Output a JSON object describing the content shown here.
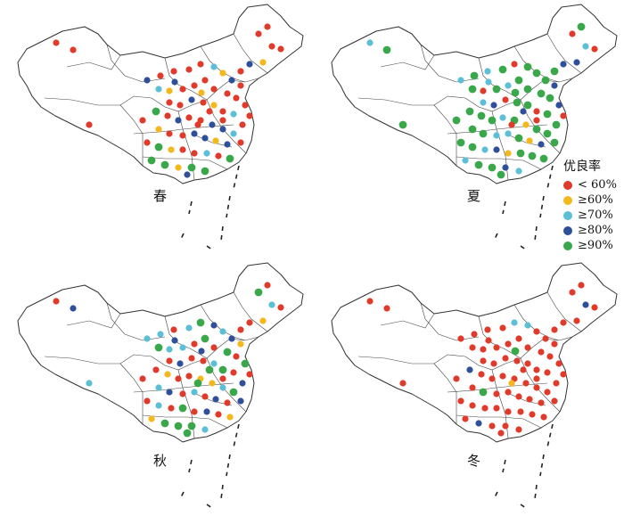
{
  "legend": {
    "title": "优良率",
    "items": [
      {
        "label": "< 60%",
        "color": "#e03a2b"
      },
      {
        "label": "≥60%",
        "color": "#f5b81c"
      },
      {
        "label": "≥70%",
        "color": "#5bbfd6"
      },
      {
        "label": "≥80%",
        "color": "#2e4f9a"
      },
      {
        "label": "≥90%",
        "color": "#3aa84a"
      }
    ]
  },
  "panels": [
    {
      "season": "春",
      "class_distribution": {
        "lt60": 0.42,
        "ge60": 0.22,
        "ge70": 0.12,
        "ge80": 0.14,
        "ge90": 0.1
      }
    },
    {
      "season": "夏",
      "class_distribution": {
        "lt60": 0.12,
        "ge60": 0.08,
        "ge70": 0.18,
        "ge80": 0.2,
        "ge90": 0.42
      }
    },
    {
      "season": "秋",
      "class_distribution": {
        "lt60": 0.38,
        "ge60": 0.2,
        "ge70": 0.12,
        "ge80": 0.16,
        "ge90": 0.14
      }
    },
    {
      "season": "冬",
      "class_distribution": {
        "lt60": 0.82,
        "ge60": 0.03,
        "ge70": 0.06,
        "ge80": 0.05,
        "ge90": 0.04
      }
    }
  ]
}
